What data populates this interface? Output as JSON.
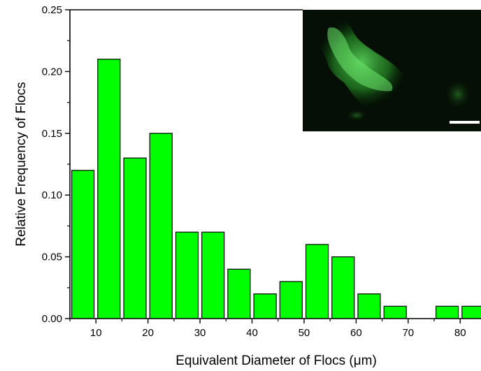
{
  "chart_data": {
    "type": "bar",
    "xlabel": "Equivalent Diameter of Flocs (μm)",
    "ylabel": "Relative Frequency of Flocs",
    "xlim": [
      5,
      84
    ],
    "ylim": [
      0,
      0.25
    ],
    "x_ticks": [
      10,
      20,
      30,
      40,
      50,
      60,
      70,
      80
    ],
    "y_ticks": [
      "0.00",
      "0.05",
      "0.10",
      "0.15",
      "0.20",
      "0.25"
    ],
    "bin_width": 5,
    "bar_color": "#00ff00",
    "bars": [
      {
        "center": 7.5,
        "value": 0.12
      },
      {
        "center": 12.5,
        "value": 0.21
      },
      {
        "center": 17.5,
        "value": 0.13
      },
      {
        "center": 22.5,
        "value": 0.15
      },
      {
        "center": 27.5,
        "value": 0.07
      },
      {
        "center": 32.5,
        "value": 0.07
      },
      {
        "center": 37.5,
        "value": 0.04
      },
      {
        "center": 42.5,
        "value": 0.02
      },
      {
        "center": 47.5,
        "value": 0.03
      },
      {
        "center": 52.5,
        "value": 0.06
      },
      {
        "center": 57.5,
        "value": 0.05
      },
      {
        "center": 62.5,
        "value": 0.02
      },
      {
        "center": 67.5,
        "value": 0.01
      },
      {
        "center": 72.5,
        "value": 0.0
      },
      {
        "center": 77.5,
        "value": 0.01
      },
      {
        "center": 82.5,
        "value": 0.01
      }
    ],
    "inset": {
      "type": "fluorescence-micrograph",
      "has_scale_bar": true
    }
  }
}
